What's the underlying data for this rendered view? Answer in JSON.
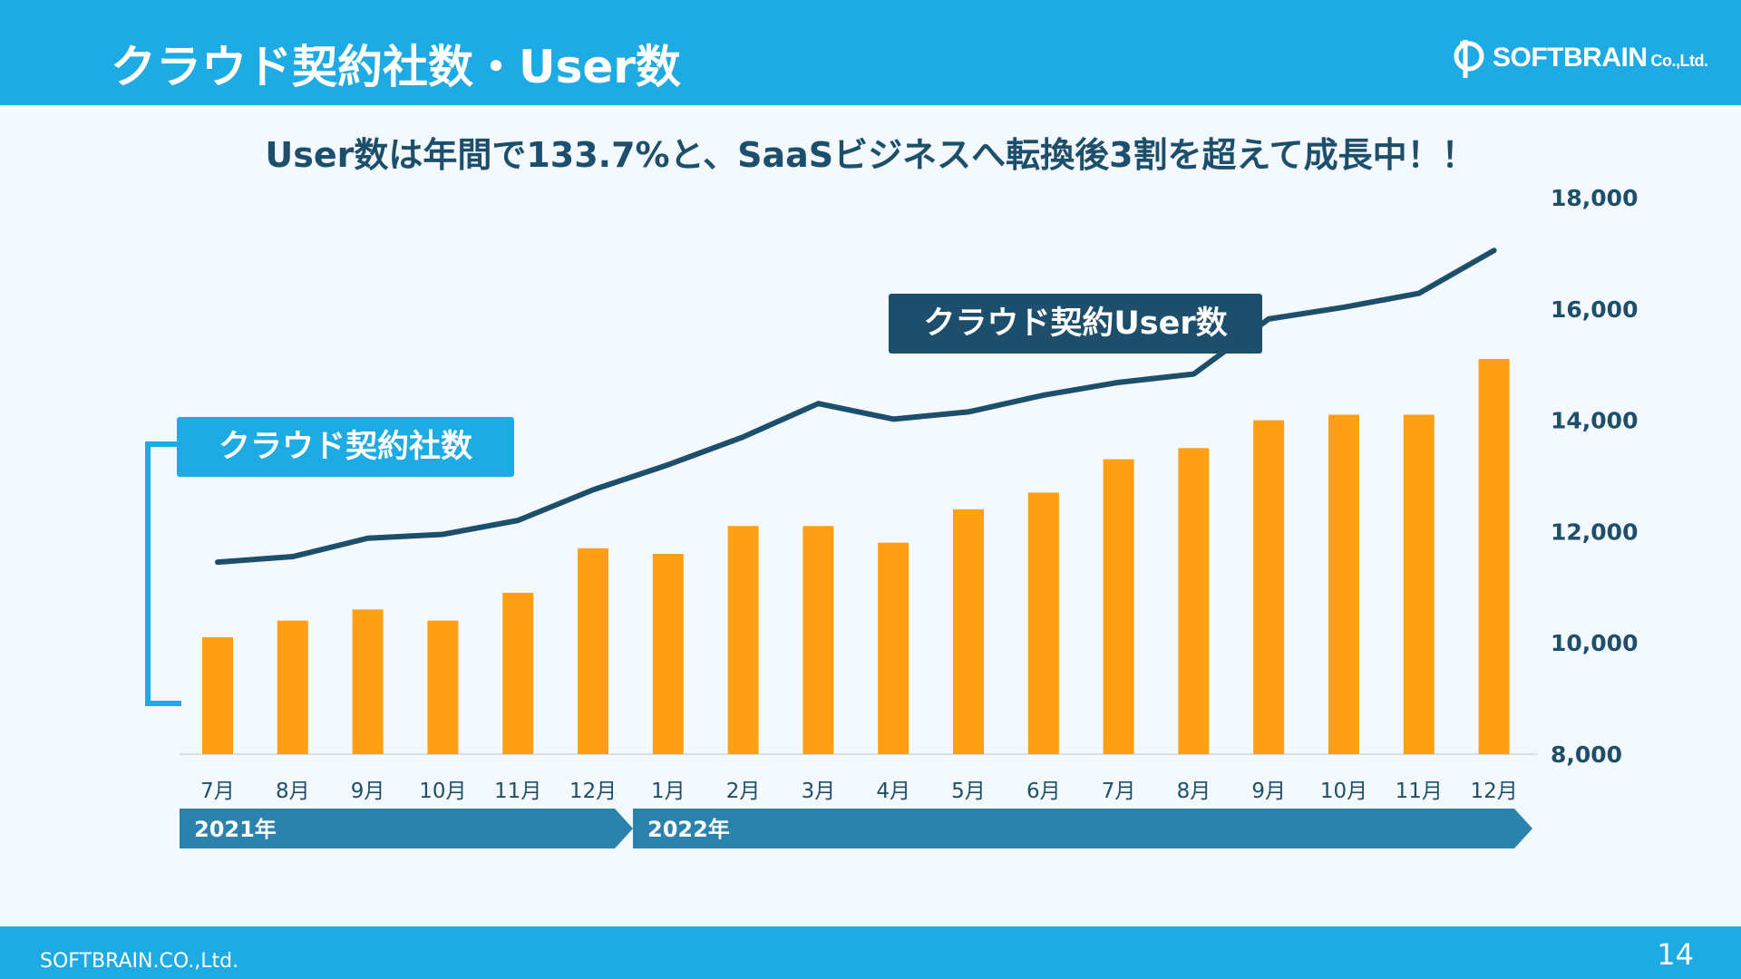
{
  "header": {
    "title": "クラウド契約社数・User数",
    "logo_text": "SOFTBRAIN",
    "logo_suffix": "Co.,Ltd."
  },
  "headline": "User数は年間で133.7%と、SaaSビジネスへ転換後3割を超えて成長中！！",
  "footer": {
    "company": "SOFTBRAIN.CO.,Ltd.",
    "page_number": "14"
  },
  "colors": {
    "header": "#1eabe3",
    "bars": "#ff9f14",
    "line": "#1d4e6b",
    "axis_text": "#1d4e6b",
    "year_band": "#2b82ad"
  },
  "chart_data": {
    "type": "bar+line",
    "categories": [
      "7月",
      "8月",
      "9月",
      "10月",
      "11月",
      "12月",
      "1月",
      "2月",
      "3月",
      "4月",
      "5月",
      "6月",
      "7月",
      "8月",
      "9月",
      "10月",
      "11月",
      "12月"
    ],
    "year_groups": [
      {
        "label": "2021年",
        "start_index": 0,
        "end_index": 5
      },
      {
        "label": "2022年",
        "start_index": 6,
        "end_index": 17
      }
    ],
    "series": [
      {
        "name": "クラウド契約社数",
        "type": "bar",
        "axis": "hidden",
        "values": [
          10.1,
          10.4,
          10.6,
          10.4,
          10.9,
          11.7,
          11.6,
          12.1,
          12.1,
          11.8,
          12.4,
          12.7,
          13.3,
          13.5,
          14.0,
          14.1,
          14.1,
          15.1
        ]
      },
      {
        "name": "クラウド契約User数",
        "type": "line",
        "axis": "right",
        "values": [
          11450,
          11550,
          11880,
          11950,
          12200,
          12750,
          13200,
          13700,
          14300,
          14020,
          14150,
          14450,
          14680,
          14830,
          15820,
          16030,
          16280,
          17050
        ]
      }
    ],
    "y_right": {
      "min": 8000,
      "max": 18000,
      "ticks": [
        "8,000",
        "10,000",
        "12,000",
        "14,000",
        "16,000",
        "18,000"
      ]
    },
    "bar_axis": {
      "min": 8,
      "max": 18
    }
  }
}
